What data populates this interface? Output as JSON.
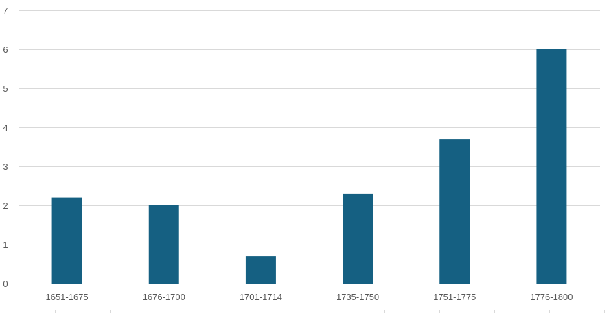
{
  "chart_data": {
    "type": "bar",
    "categories": [
      "1651-1675",
      "1676-1700",
      "1701-1714",
      "1735-1750",
      "1751-1775",
      "1776-1800"
    ],
    "series": [
      {
        "values": [
          2.2,
          2.0,
          0.7,
          2.3,
          3.7,
          6.0
        ],
        "color": "#156082"
      }
    ],
    "y_ticks": [
      "0",
      "1",
      "2",
      "3",
      "4",
      "5",
      "6",
      "7"
    ],
    "ylim": [
      0,
      7
    ],
    "grid": true,
    "gridline_color": "#d9d9d9",
    "legend": "none"
  }
}
